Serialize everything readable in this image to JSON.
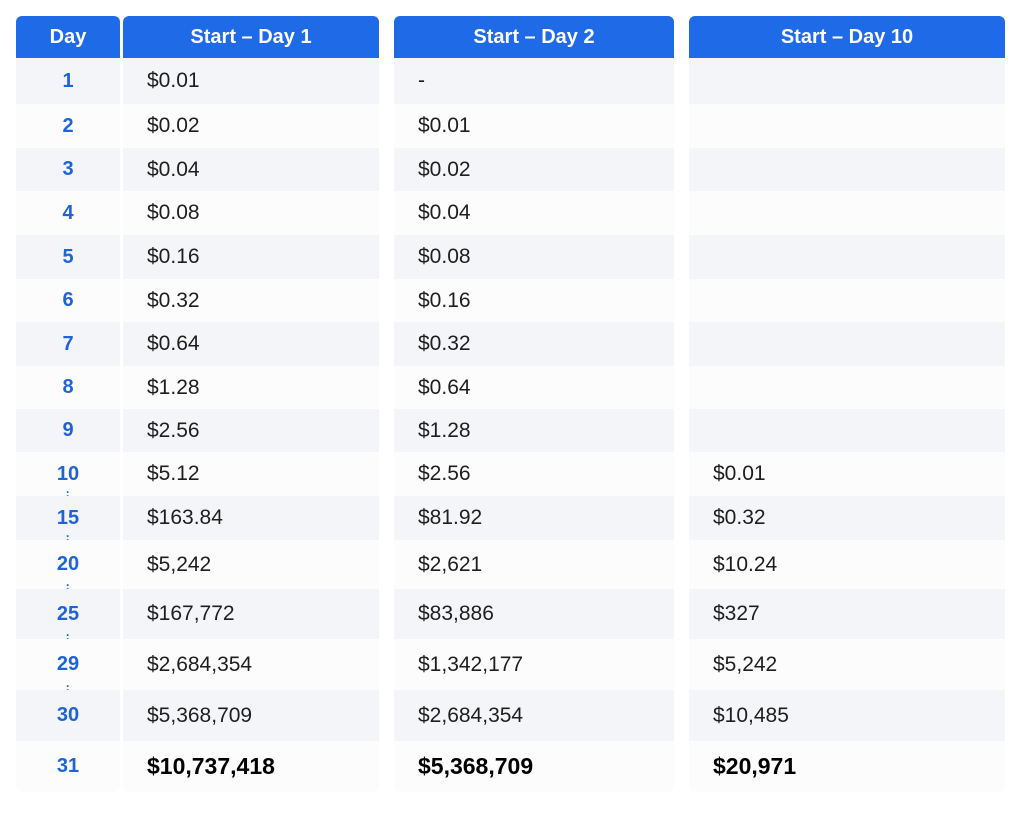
{
  "headers": [
    "Day",
    "Start – Day 1",
    "Start – Day 2",
    "Start – Day 10"
  ],
  "rows": [
    {
      "day": "1",
      "d1": "$0.01",
      "d2": "-",
      "d10": ""
    },
    {
      "day": "2",
      "d1": "$0.02",
      "d2": "$0.01",
      "d10": ""
    },
    {
      "day": "3",
      "d1": "$0.04",
      "d2": "$0.02",
      "d10": ""
    },
    {
      "day": "4",
      "d1": "$0.08",
      "d2": "$0.04",
      "d10": ""
    },
    {
      "day": "5",
      "d1": "$0.16",
      "d2": "$0.08",
      "d10": ""
    },
    {
      "day": "6",
      "d1": "$0.32",
      "d2": "$0.16",
      "d10": ""
    },
    {
      "day": "7",
      "d1": "$0.64",
      "d2": "$0.32",
      "d10": ""
    },
    {
      "day": "8",
      "d1": "$1.28",
      "d2": "$0.64",
      "d10": ""
    },
    {
      "day": "9",
      "d1": "$2.56",
      "d2": "$1.28",
      "d10": ""
    },
    {
      "day": "10",
      "d1": "$5.12",
      "d2": "$2.56",
      "d10": "$0.01"
    },
    {
      "day": "15",
      "d1": "$163.84",
      "d2": "$81.92",
      "d10": "$0.32"
    },
    {
      "day": "20",
      "d1": "$5,242",
      "d2": "$2,621",
      "d10": "$10.24"
    },
    {
      "day": "25",
      "d1": "$167,772",
      "d2": "$83,886",
      "d10": "$327"
    },
    {
      "day": "29",
      "d1": "$2,684,354",
      "d2": "$1,342,177",
      "d10": "$5,242"
    },
    {
      "day": "30",
      "d1": "$5,368,709",
      "d2": "$2,684,354",
      "d10": "$10,485"
    },
    {
      "day": "31",
      "d1": "$10,737,418",
      "d2": "$5,368,709",
      "d10": "$20,971"
    }
  ],
  "ellipsis_after_days": [
    "10",
    "15",
    "20",
    "25",
    "29"
  ],
  "colors": {
    "header_bg": "#1f6ae6",
    "day_text": "#1f63d8",
    "row_alt": "#f4f5f8"
  }
}
